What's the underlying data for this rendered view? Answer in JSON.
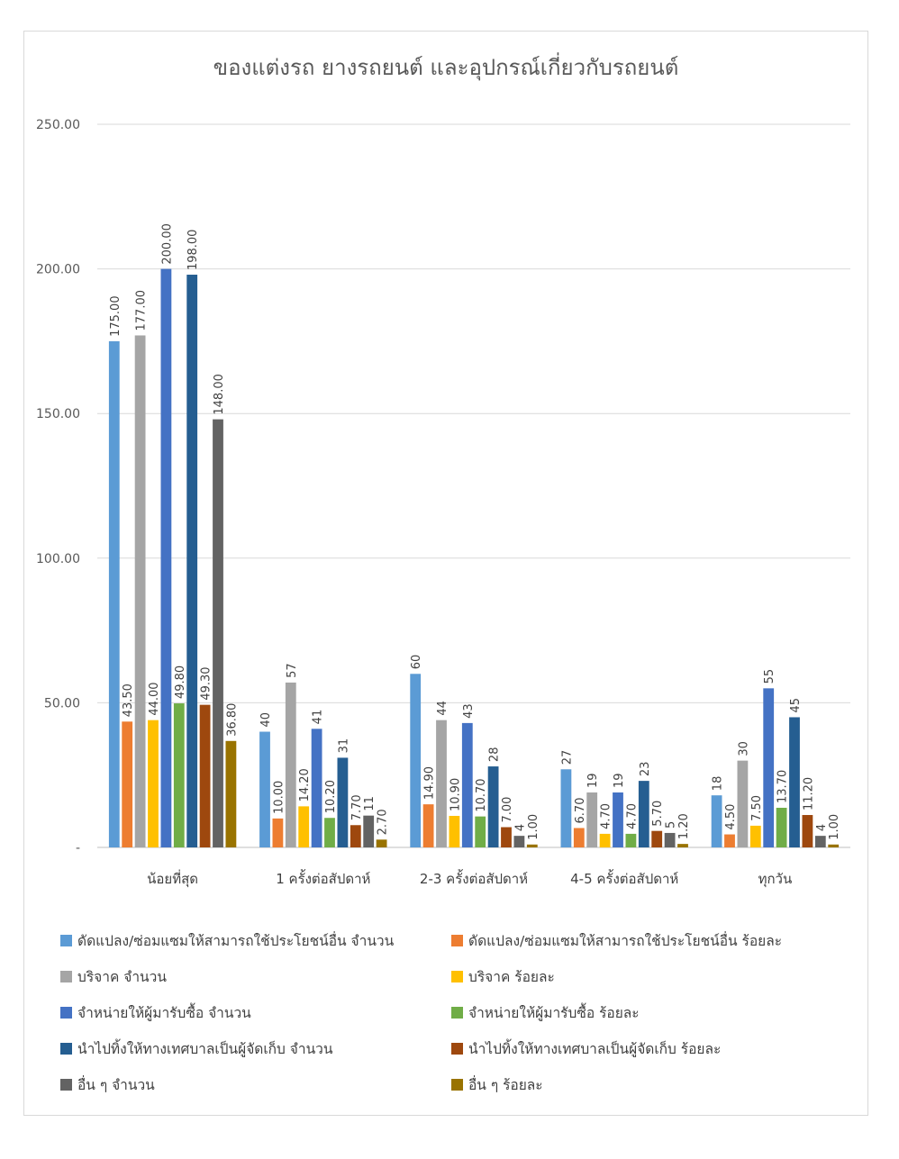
{
  "chart_data": {
    "type": "bar",
    "title": "ของแต่งรถ ยางรถยนต์ และอุปกรณ์เกี่ยวกับรถยนต์",
    "xlabel": "",
    "ylabel": "",
    "ylim": [
      0,
      250
    ],
    "yticks": [
      0,
      50,
      100,
      150,
      200,
      250
    ],
    "ytick_labels": [
      "-",
      "50.00",
      "100.00",
      "150.00",
      "200.00",
      "250.00"
    ],
    "grid": true,
    "legend_position": "bottom",
    "categories": [
      "น้อยที่สุด",
      "1 ครั้งต่อสัปดาห์",
      "2-3 ครั้งต่อสัปดาห์",
      "4-5 ครั้งต่อสัปดาห์",
      "ทุกวัน"
    ],
    "series": [
      {
        "name": "ดัดแปลง/ซ่อมแซมให้สามารถใช้ประโยชน์อื่น จำนวน",
        "color": "#5b9bd5",
        "values": [
          175,
          40,
          60,
          27,
          18
        ],
        "labels": [
          "175.00",
          "40",
          "60",
          "27",
          "18"
        ]
      },
      {
        "name": "ดัดแปลง/ซ่อมแซมให้สามารถใช้ประโยชน์อื่น ร้อยละ",
        "color": "#ed7d31",
        "values": [
          43.5,
          10,
          14.9,
          6.7,
          4.5
        ],
        "labels": [
          "43.50",
          "10.00",
          "14.90",
          "6.70",
          "4.50"
        ]
      },
      {
        "name": "บริจาค จำนวน",
        "color": "#a5a5a5",
        "values": [
          177,
          57,
          44,
          19,
          30
        ],
        "labels": [
          "177.00",
          "57",
          "44",
          "19",
          "30"
        ]
      },
      {
        "name": "บริจาค ร้อยละ",
        "color": "#ffc000",
        "values": [
          44,
          14.2,
          10.9,
          4.7,
          7.5
        ],
        "labels": [
          "44.00",
          "14.20",
          "10.90",
          "4.70",
          "7.50"
        ]
      },
      {
        "name": "จำหน่ายให้ผู้มารับซื้อ จำนวน",
        "color": "#4472c4",
        "values": [
          200,
          41,
          43,
          19,
          55
        ],
        "labels": [
          "200.00",
          "41",
          "43",
          "19",
          "55"
        ]
      },
      {
        "name": "จำหน่ายให้ผู้มารับซื้อ ร้อยละ",
        "color": "#70ad47",
        "values": [
          49.8,
          10.2,
          10.7,
          4.7,
          13.7
        ],
        "labels": [
          "49.80",
          "10.20",
          "10.70",
          "4.70",
          "13.70"
        ]
      },
      {
        "name": "นำไปทิ้งให้ทางเทศบาลเป็นผู้จัดเก็บ จำนวน",
        "color": "#255e91",
        "values": [
          198,
          31,
          28,
          23,
          45
        ],
        "labels": [
          "198.00",
          "31",
          "28",
          "23",
          "45"
        ]
      },
      {
        "name": "นำไปทิ้งให้ทางเทศบาลเป็นผู้จัดเก็บ ร้อยละ",
        "color": "#9e480e",
        "values": [
          49.3,
          7.7,
          7,
          5.7,
          11.2
        ],
        "labels": [
          "49.30",
          "7.70",
          "7.00",
          "5.70",
          "11.20"
        ]
      },
      {
        "name": "อื่น ๆ จำนวน",
        "color": "#636363",
        "values": [
          148,
          11,
          4,
          5,
          4
        ],
        "labels": [
          "148.00",
          "11",
          "4",
          "5",
          "4"
        ]
      },
      {
        "name": "อื่น ๆ ร้อยละ",
        "color": "#997300",
        "values": [
          36.8,
          2.7,
          1,
          1.2,
          1
        ],
        "labels": [
          "36.80",
          "2.70",
          "1.00",
          "1.20",
          "1.00"
        ]
      }
    ]
  }
}
